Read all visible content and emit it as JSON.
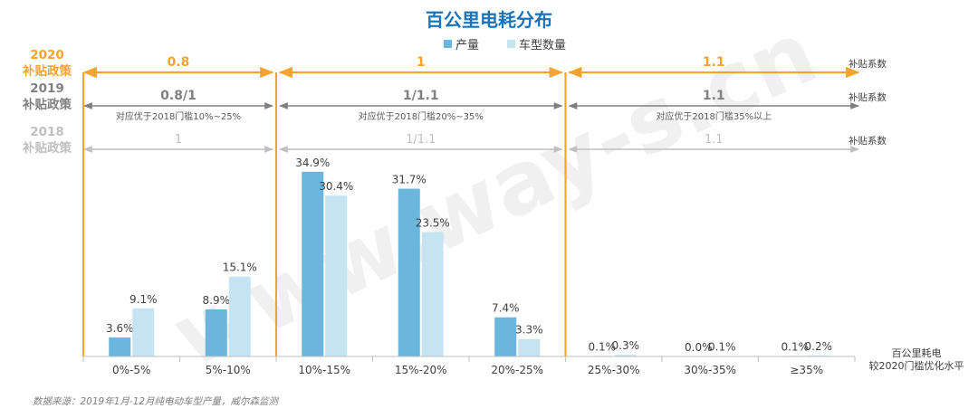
{
  "colors": {
    "production": "#6ab6dc",
    "model_count": "#c5e3f0",
    "accent_orange": "#f3a430",
    "policy_2019": "#808080",
    "policy_2018": "#bfbfbf",
    "axis": "#bfbfbf",
    "title": "#1a73b8",
    "watermark": "#f0f0f0"
  },
  "chart_data": {
    "type": "bar",
    "title": "百公里电耗分布",
    "legend": [
      "产量",
      "车型数量"
    ],
    "legend_position": "top-center",
    "xlabel": "百公里耗电\n较2020门槛优化水平",
    "ylabel": "",
    "categories": [
      "0%-5%",
      "5%-10%",
      "10%-15%",
      "15%-20%",
      "20%-25%",
      "25%-30%",
      "30%-35%",
      "≥35%"
    ],
    "series": [
      {
        "name": "产量",
        "values": [
          3.6,
          8.9,
          34.9,
          31.7,
          7.4,
          0.1,
          0.0,
          0.1
        ],
        "labels": [
          "3.6%",
          "8.9%",
          "34.9%",
          "31.7%",
          "7.4%",
          "0.1%",
          "0.0%",
          "0.1%"
        ]
      },
      {
        "name": "车型数量",
        "values": [
          9.1,
          15.1,
          30.4,
          23.5,
          3.3,
          0.3,
          0.1,
          0.2
        ],
        "labels": [
          "9.1%",
          "15.1%",
          "30.4%",
          "23.5%",
          "3.3%",
          "0.3%",
          "0.1%",
          "0.2%"
        ]
      }
    ],
    "ylim": [
      0,
      40
    ],
    "grid": false
  },
  "policies": [
    {
      "year": "2020",
      "label": "补贴政策",
      "tier": "2020",
      "segments": [
        {
          "span": [
            0,
            2
          ],
          "value": "0.8",
          "note": ""
        },
        {
          "span": [
            2,
            5
          ],
          "value": "1",
          "note": ""
        },
        {
          "span": [
            5,
            8
          ],
          "value": "1.1",
          "note": ""
        }
      ],
      "coef_label": "补贴系数"
    },
    {
      "year": "2019",
      "label": "补贴政策",
      "tier": "2019",
      "segments": [
        {
          "span": [
            0,
            2
          ],
          "value": "0.8/1",
          "note": "对应优于2018门槛10%~25%"
        },
        {
          "span": [
            2,
            5
          ],
          "value": "1/1.1",
          "note": "对应优于2018门槛20%~35%"
        },
        {
          "span": [
            5,
            8
          ],
          "value": "1.1",
          "note": "对应优于2018门槛35%以上"
        }
      ],
      "coef_label": "补贴系数"
    },
    {
      "year": "2018",
      "label": "补贴政策",
      "tier": "2018",
      "segments": [
        {
          "span": [
            0,
            2
          ],
          "value": "1",
          "note": ""
        },
        {
          "span": [
            2,
            5
          ],
          "value": "1/1.1",
          "note": ""
        },
        {
          "span": [
            5,
            8
          ],
          "value": "1.1",
          "note": ""
        }
      ],
      "coef_label": "补贴系数"
    }
  ],
  "watermark": "www.way-s.cn",
  "source_note": "数据来源：2019年1月-12月纯电动车型产量，威尔森监测"
}
